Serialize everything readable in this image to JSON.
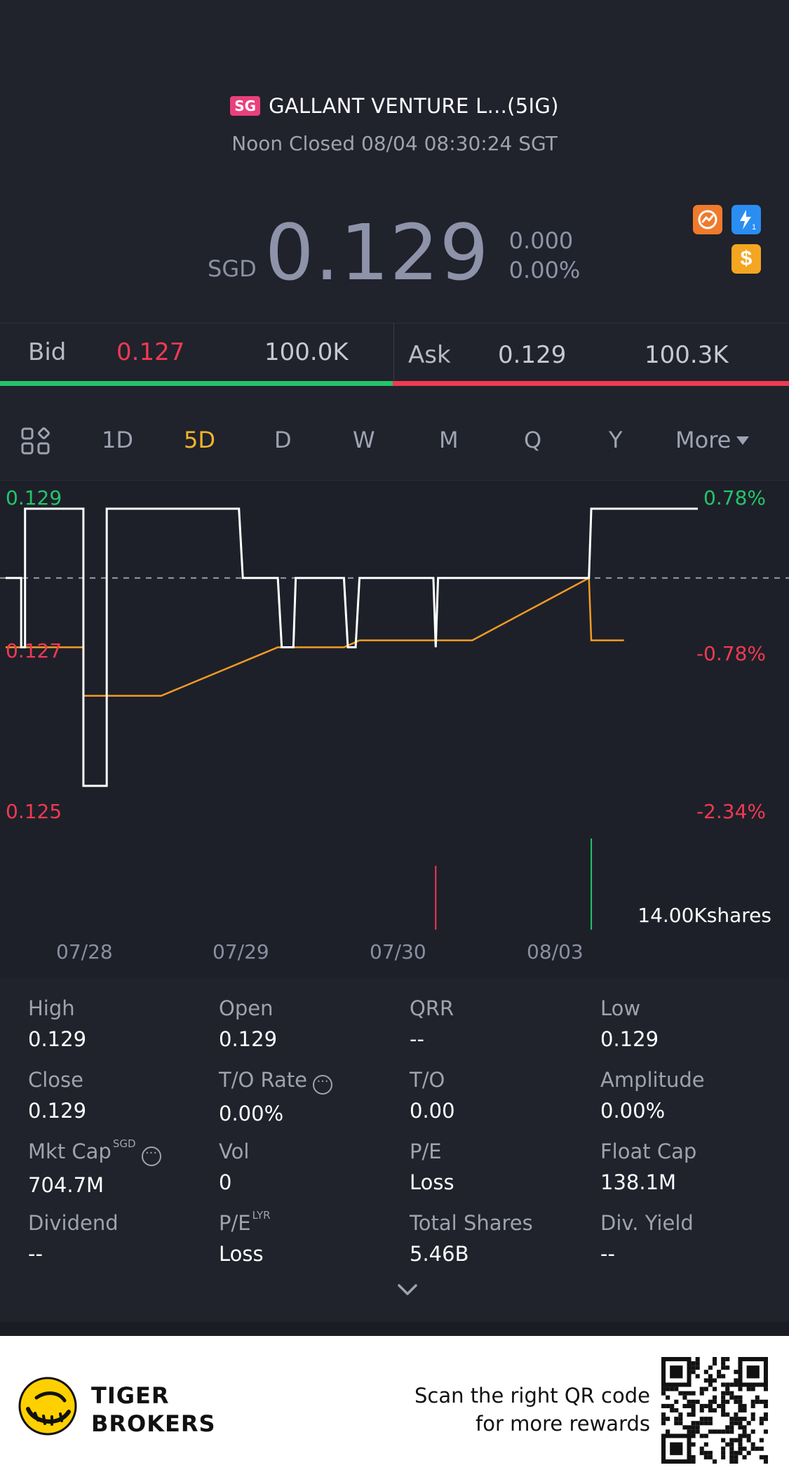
{
  "header": {
    "market_badge": "SG",
    "title": "GALLANT VENTURE L...(5IG)",
    "status": "Noon Closed 08/04 08:30:24 SGT"
  },
  "quote": {
    "currency": "SGD",
    "price": "0.129",
    "change": "0.000",
    "change_pct": "0.00%",
    "icons": [
      "gauge-icon",
      "flash-icon",
      "dollar-icon"
    ],
    "flash_subscript": "1",
    "dollar_glyph": "$"
  },
  "bidask": {
    "bid_label": "Bid",
    "bid_price": "0.127",
    "bid_size": "100.0K",
    "ask_label": "Ask",
    "ask_price": "0.129",
    "ask_size": "100.3K"
  },
  "tabs": [
    {
      "label": "1D"
    },
    {
      "label": "5D",
      "active": true
    },
    {
      "label": "D"
    },
    {
      "label": "W"
    },
    {
      "label": "M"
    },
    {
      "label": "Q"
    },
    {
      "label": "Y"
    },
    {
      "label": "More"
    }
  ],
  "chart_data": {
    "type": "line",
    "y_left_ticks": [
      "0.129",
      "0.127",
      "0.125"
    ],
    "y_right_ticks": [
      "0.78%",
      "-0.78%",
      "-2.34%"
    ],
    "x_ticks": [
      "07/28",
      "07/29",
      "07/30",
      "08/03"
    ],
    "volume_label": "14.00Kshares",
    "reference_price": 0.128,
    "ylim": [
      0.125,
      0.129
    ],
    "series": [
      {
        "points": [
          [
            0,
            0.128
          ],
          [
            2,
            0.128
          ],
          [
            2,
            0.127
          ],
          [
            2.5,
            0.127
          ],
          [
            2.5,
            0.129
          ],
          [
            10,
            0.129
          ],
          [
            10,
            0.125
          ],
          [
            13,
            0.125
          ],
          [
            13,
            0.129
          ],
          [
            20,
            0.129
          ],
          [
            30,
            0.129
          ],
          [
            30.5,
            0.128
          ],
          [
            35,
            0.128
          ],
          [
            35.5,
            0.127
          ],
          [
            37,
            0.127
          ],
          [
            37.3,
            0.128
          ],
          [
            43.5,
            0.128
          ],
          [
            44,
            0.127
          ],
          [
            45,
            0.127
          ],
          [
            45.5,
            0.128
          ],
          [
            55,
            0.128
          ],
          [
            55.3,
            0.127
          ],
          [
            55.6,
            0.128
          ],
          [
            75,
            0.128
          ],
          [
            75.3,
            0.129
          ],
          [
            89,
            0.129
          ]
        ]
      },
      {
        "points": [
          [
            0,
            0.127
          ],
          [
            10,
            0.127
          ],
          [
            10,
            0.1263
          ],
          [
            20,
            0.1263
          ],
          [
            35,
            0.127
          ],
          [
            40,
            0.127
          ],
          [
            43.5,
            0.127
          ],
          [
            45.5,
            0.1271
          ],
          [
            60,
            0.1271
          ],
          [
            75,
            0.128
          ],
          [
            75.3,
            0.1271
          ],
          [
            79.5,
            0.1271
          ]
        ]
      }
    ],
    "volume_bars": [
      {
        "x": 55.3,
        "value": 0.7,
        "color": "#f03a52"
      },
      {
        "x": 75.3,
        "value": 1.0,
        "color": "#24c46b"
      }
    ],
    "colors": {
      "price": "#ffffff",
      "average": "#f39c24",
      "reference": "#9a9ca6",
      "up": "#24c46b",
      "down": "#f03a52"
    }
  },
  "stats": [
    {
      "label": "High",
      "value": "0.129"
    },
    {
      "label": "Open",
      "value": "0.129"
    },
    {
      "label": "QRR",
      "value": "--"
    },
    {
      "label": "Low",
      "value": "0.129"
    },
    {
      "label": "Close",
      "value": "0.129"
    },
    {
      "label": "T/O Rate",
      "value": "0.00%",
      "info": true
    },
    {
      "label": "T/O",
      "value": "0.00"
    },
    {
      "label": "Amplitude",
      "value": "0.00%"
    },
    {
      "label": "Mkt Cap",
      "value": "704.7M",
      "sup": "SGD",
      "info": true
    },
    {
      "label": "Vol",
      "value": "0"
    },
    {
      "label": "P/E",
      "value": "Loss"
    },
    {
      "label": "Float Cap",
      "value": "138.1M"
    },
    {
      "label": "Dividend",
      "value": "--"
    },
    {
      "label": "P/E",
      "value": "Loss",
      "sup": "LYR"
    },
    {
      "label": "Total Shares",
      "value": "5.46B"
    },
    {
      "label": "Div. Yield",
      "value": "--"
    }
  ],
  "footer": {
    "brand_line1": "TIGER",
    "brand_line2": "BROKERS",
    "promo_line1": "Scan the right QR code",
    "promo_line2": "for more rewards"
  }
}
